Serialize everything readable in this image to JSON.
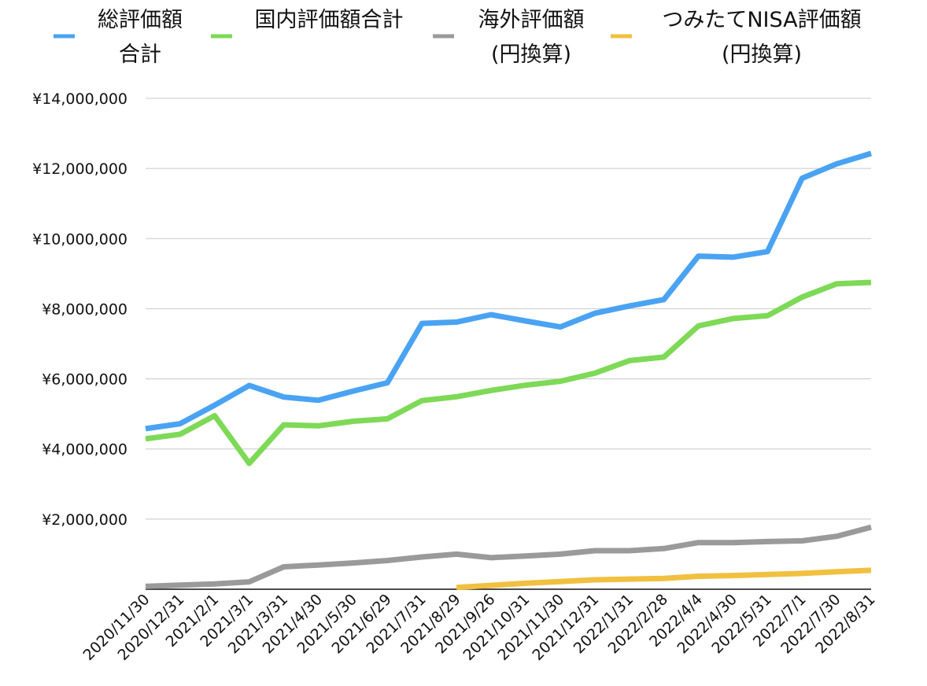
{
  "chart_data": {
    "type": "line",
    "title": "",
    "xlabel": "",
    "ylabel": "",
    "ylim": [
      0,
      14000000
    ],
    "yticks": [
      2000000,
      4000000,
      6000000,
      8000000,
      10000000,
      12000000,
      14000000
    ],
    "ytick_labels": [
      "¥2,000,000",
      "¥4,000,000",
      "¥6,000,000",
      "¥8,000,000",
      "¥10,000,000",
      "¥12,000,000",
      "¥14,000,000"
    ],
    "grid": true,
    "legend_position": "top",
    "categories": [
      "2020/11/30",
      "2020/12/31",
      "2021/2/1",
      "2021/3/1",
      "2021/3/31",
      "2021/4/30",
      "2021/5/30",
      "2021/6/29",
      "2021/7/31",
      "2021/8/29",
      "2021/9/26",
      "2021/10/31",
      "2021/11/30",
      "2021/12/31",
      "2022/1/31",
      "2022/2/28",
      "2022/4/4",
      "2022/4/30",
      "2022/5/31",
      "2022/7/1",
      "2022/7/30",
      "2022/8/31"
    ],
    "series": [
      {
        "name": [
          "総評価額",
          "合計"
        ],
        "color": "#4aa3f2",
        "values": [
          4580000,
          4720000,
          5250000,
          5810000,
          5480000,
          5390000,
          5650000,
          5890000,
          7580000,
          7620000,
          7830000,
          7650000,
          7480000,
          7870000,
          8080000,
          8260000,
          9500000,
          9470000,
          9630000,
          11720000,
          12130000,
          12430000
        ]
      },
      {
        "name": [
          "国内評価額合計"
        ],
        "color": "#7ed957",
        "values": [
          4290000,
          4420000,
          4950000,
          3590000,
          4690000,
          4660000,
          4790000,
          4860000,
          5380000,
          5490000,
          5670000,
          5820000,
          5930000,
          6160000,
          6520000,
          6620000,
          7510000,
          7720000,
          7800000,
          8330000,
          8710000,
          8750000
        ]
      },
      {
        "name": [
          "海外評価額",
          "(円換算)"
        ],
        "color": "#9a9a9a",
        "values": [
          80000,
          120000,
          150000,
          210000,
          640000,
          690000,
          750000,
          820000,
          920000,
          1000000,
          900000,
          950000,
          1000000,
          1100000,
          1100000,
          1160000,
          1330000,
          1330000,
          1360000,
          1380000,
          1510000,
          1770000
        ]
      },
      {
        "name": [
          "つみたてNISA評価額",
          "(円換算)"
        ],
        "color": "#f1c040",
        "values": [
          null,
          null,
          null,
          null,
          null,
          null,
          null,
          null,
          null,
          50000,
          110000,
          170000,
          220000,
          270000,
          290000,
          310000,
          370000,
          390000,
          420000,
          450000,
          500000,
          540000
        ]
      }
    ]
  }
}
